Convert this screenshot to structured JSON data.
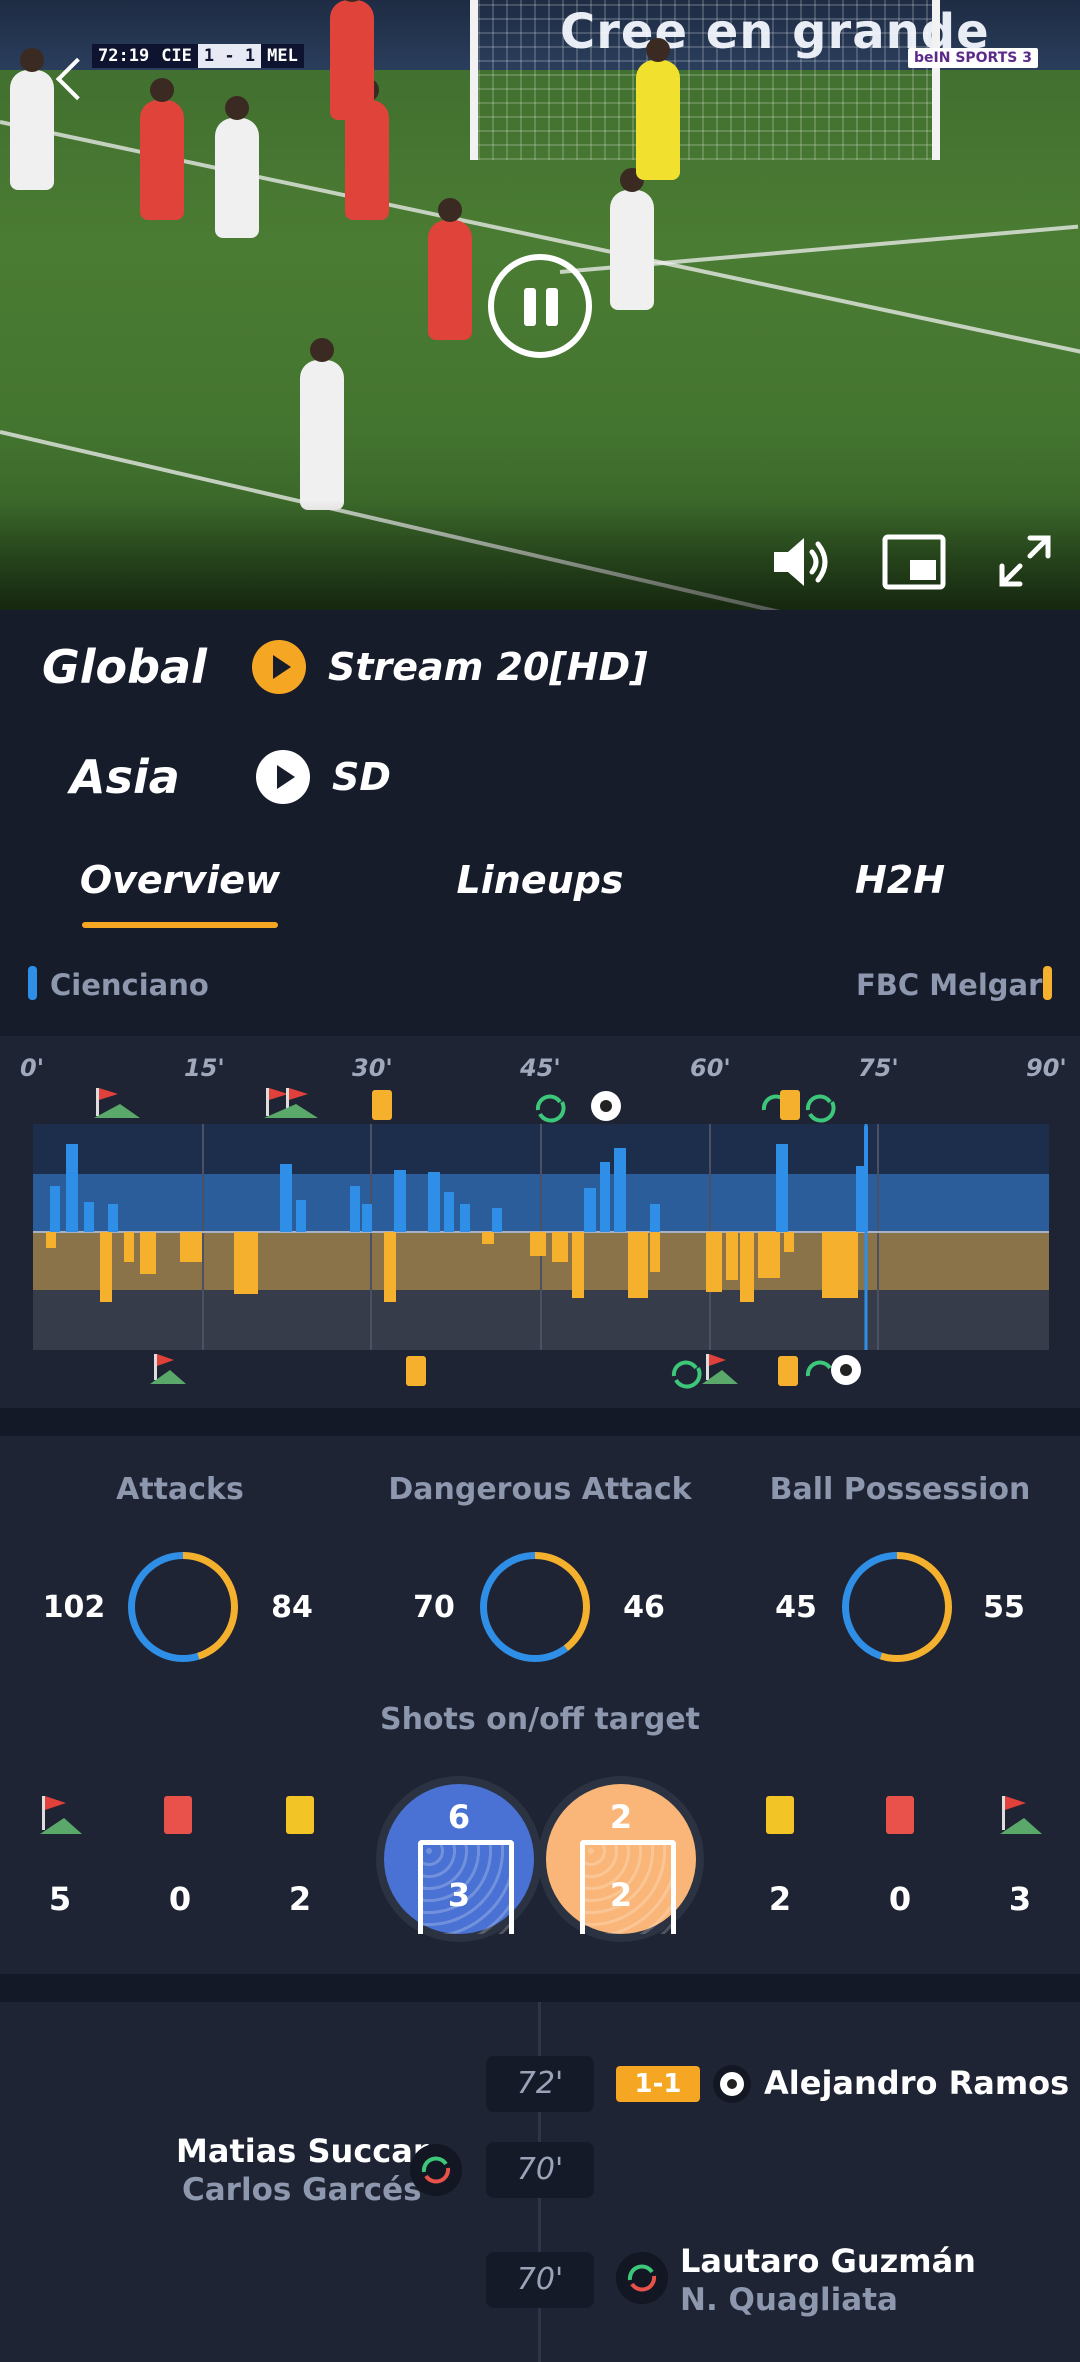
{
  "video": {
    "scorebug": {
      "time": "72:19",
      "home": "CIE",
      "score": "1 - 1",
      "away": "MEL"
    },
    "banner_text": "Cree en grande",
    "channel": "beIN SPORTS 3"
  },
  "streams": [
    {
      "region": "Global",
      "label": "Stream 20[HD]",
      "color": "#f5a623"
    },
    {
      "region": "Asia",
      "label": "SD",
      "color": "#ffffff"
    }
  ],
  "tabs": [
    "Overview",
    "Lineups",
    "H2H"
  ],
  "teams": {
    "home": "Cienciano",
    "away": "FBC Melgar",
    "home_color": "#2f8fe6",
    "away_color": "#f5b12e"
  },
  "timeline": {
    "ticks": [
      "0'",
      "15'",
      "30'",
      "45'",
      "60'",
      "75'",
      "90'"
    ],
    "current_minute": 73
  },
  "stats": {
    "attacks": {
      "title": "Attacks",
      "home": "102",
      "away": "84",
      "home_pct": 54.8
    },
    "dangerous": {
      "title": "Dangerous Attack",
      "home": "70",
      "away": "46",
      "home_pct": 60.3
    },
    "possession": {
      "title": "Ball Possession",
      "home": "45",
      "away": "55",
      "home_pct": 45
    },
    "shots_title": "Shots on/off target",
    "home_shots": {
      "on": "6",
      "off": "3"
    },
    "away_shots": {
      "on": "2",
      "off": "2"
    },
    "home_corners": "5",
    "home_red": "0",
    "home_yellow": "2",
    "away_yellow": "2",
    "away_red": "0",
    "away_corners": "3"
  },
  "events": [
    {
      "minute": "72'",
      "score": "1-1",
      "player": "Alejandro Ramos"
    },
    {
      "minute": "70'",
      "player_in": "Matias Succar",
      "player_out": "Carlos Garcés"
    },
    {
      "minute": "70'",
      "player_in": "Lautaro Guzmán",
      "player_out": "N. Quagliata"
    }
  ]
}
